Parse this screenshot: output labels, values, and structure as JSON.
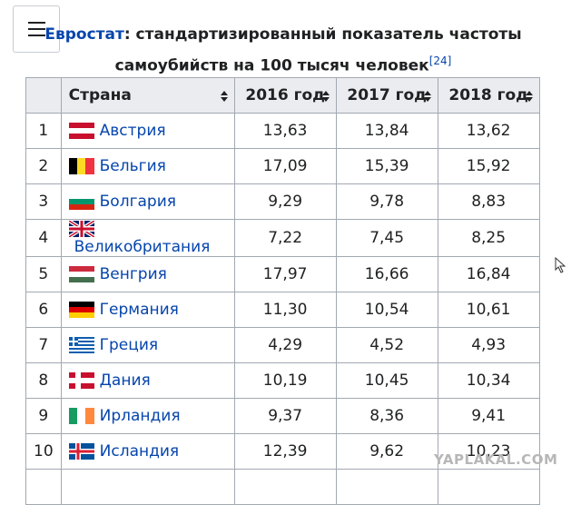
{
  "caption": {
    "link": "Евростат",
    "text": ": стандартизированный показатель частоты самоубийств на 100 тысяч человек",
    "ref": "[24]"
  },
  "table": {
    "headers": [
      "Страна",
      "2016 год",
      "2017 год",
      "2018 год"
    ],
    "rows": [
      [
        "1",
        "Австрия",
        "13,63",
        "13,84",
        "13,62"
      ],
      [
        "2",
        "Бельгия",
        "17,09",
        "15,39",
        "15,92"
      ],
      [
        "3",
        "Болгария",
        "9,29",
        "9,78",
        "8,83"
      ],
      [
        "4",
        "Великобритания",
        "7,22",
        "7,45",
        "8,25"
      ],
      [
        "5",
        "Венгрия",
        "17,97",
        "16,66",
        "16,84"
      ],
      [
        "6",
        "Германия",
        "11,30",
        "10,54",
        "10,61"
      ],
      [
        "7",
        "Греция",
        "4,29",
        "4,52",
        "4,93"
      ],
      [
        "8",
        "Дания",
        "10,19",
        "10,45",
        "10,34"
      ],
      [
        "9",
        "Ирландия",
        "9,37",
        "8,36",
        "9,41"
      ],
      [
        "10",
        "Исландия",
        "12,39",
        "9,62",
        "10,23"
      ]
    ]
  },
  "watermark": "YAPLAKAL.COM"
}
